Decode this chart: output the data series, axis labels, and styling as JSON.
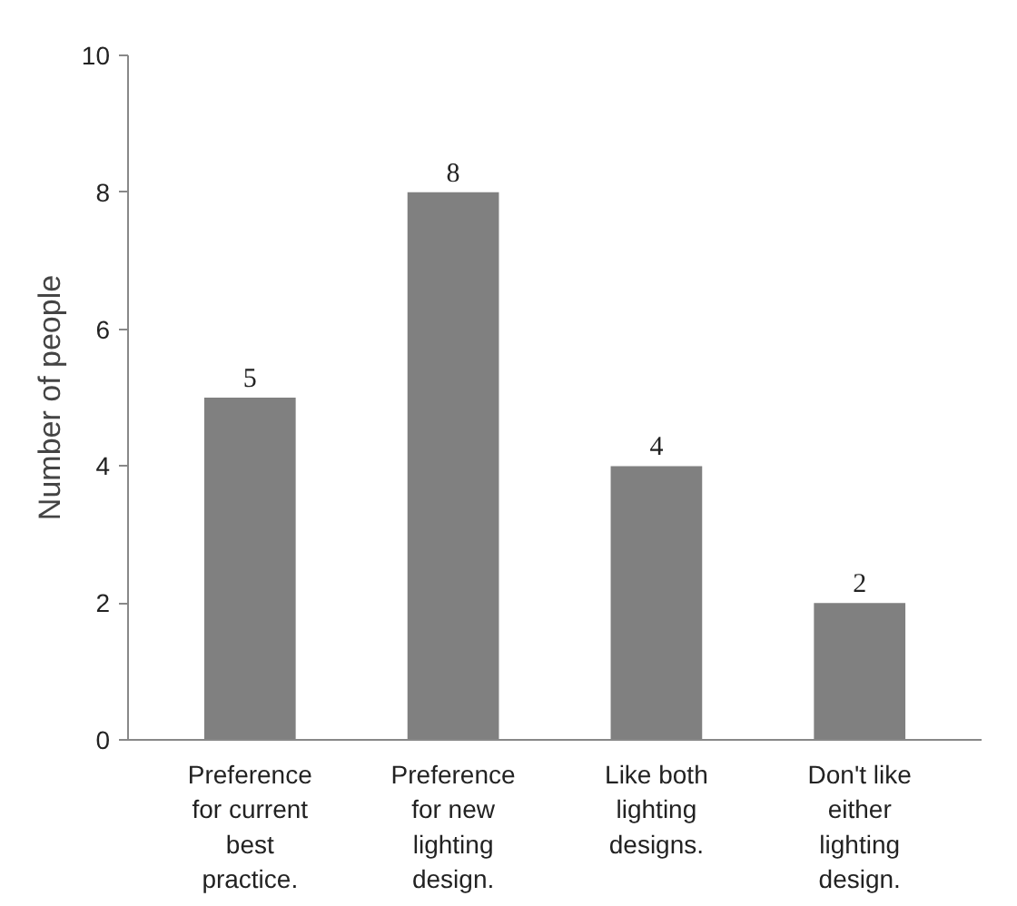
{
  "chart_data": {
    "type": "bar",
    "ylabel": "Number of people",
    "categories": [
      "Preference for current best practice.",
      "Preference for new lighting design.",
      "Like both lighting designs.",
      "Don't like either lighting design."
    ],
    "values": [
      5,
      8,
      4,
      2
    ],
    "color": "#808080",
    "ylim": [
      0,
      10
    ],
    "yticks": [
      0,
      2,
      4,
      6,
      8,
      10
    ],
    "grid": false,
    "data_labels": true
  }
}
